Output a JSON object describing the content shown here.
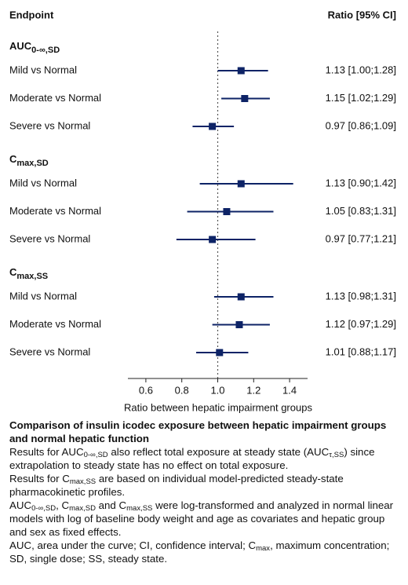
{
  "chart_data": {
    "type": "forest",
    "column_headers": [
      "Endpoint",
      "Ratio [95% CI]"
    ],
    "color": "#0d2366",
    "reference_line": 1,
    "xlim": [
      0.5,
      1.5
    ],
    "xticks": [
      0.6,
      0.8,
      {
        "value": 1,
        "label": "1.0"
      },
      1.2,
      1.4
    ],
    "xlabel": "Ratio between hepatic impairment groups",
    "groups": [
      {
        "label": "AUC",
        "label_sub": "0-∞,SD",
        "rows": [
          {
            "label": "Mild vs Normal",
            "estimate": 1.13,
            "lower": 1.0,
            "upper": 1.28,
            "value_label": "1.13 [1.00;1.28]"
          },
          {
            "label": "Moderate vs Normal",
            "estimate": 1.15,
            "lower": 1.02,
            "upper": 1.29,
            "value_label": "1.15 [1.02;1.29]"
          },
          {
            "label": "Severe vs Normal",
            "estimate": 0.97,
            "lower": 0.86,
            "upper": 1.09,
            "value_label": "0.97 [0.86;1.09]"
          }
        ]
      },
      {
        "label": "C",
        "label_sub": "max,SD",
        "rows": [
          {
            "label": "Mild vs Normal",
            "estimate": 1.13,
            "lower": 0.9,
            "upper": 1.42,
            "value_label": "1.13 [0.90;1.42]"
          },
          {
            "label": "Moderate vs Normal",
            "estimate": 1.05,
            "lower": 0.83,
            "upper": 1.31,
            "value_label": "1.05 [0.83;1.31]"
          },
          {
            "label": "Severe vs Normal",
            "estimate": 0.97,
            "lower": 0.77,
            "upper": 1.21,
            "value_label": "0.97 [0.77;1.21]"
          }
        ]
      },
      {
        "label": "C",
        "label_sub": "max,SS",
        "rows": [
          {
            "label": "Mild vs Normal",
            "estimate": 1.13,
            "lower": 0.98,
            "upper": 1.31,
            "value_label": "1.13 [0.98;1.31]"
          },
          {
            "label": "Moderate vs Normal",
            "estimate": 1.12,
            "lower": 0.97,
            "upper": 1.29,
            "value_label": "1.12 [0.97;1.29]"
          },
          {
            "label": "Severe vs Normal",
            "estimate": 1.01,
            "lower": 0.88,
            "upper": 1.17,
            "value_label": "1.01 [0.88;1.17]"
          }
        ]
      }
    ],
    "footnote": {
      "title": "Comparison of insulin icodec exposure between hepatic impairment groups and normal hepatic function",
      "paragraphs": [
        [
          "Results for AUC",
          {
            "sub": "0-∞,SD"
          },
          " also reflect total exposure at steady state (AUC",
          {
            "sub": "τ,SS"
          },
          ") since extrapolation to steady state has no effect on total exposure."
        ],
        [
          "Results for C",
          {
            "sub": "max,SS"
          },
          " are based on individual model-predicted steady-state pharmacokinetic profiles."
        ],
        [
          "AUC",
          {
            "sub": "0-∞,SD"
          },
          ", C",
          {
            "sub": "max,SD"
          },
          " and C",
          {
            "sub": "max,SS"
          },
          " were log-transformed and analyzed in normal linear models with log of baseline body weight and age as covariates and hepatic group and sex as fixed effects."
        ],
        [
          "AUC, area under the curve; CI, confidence interval; C",
          {
            "sub": "max"
          },
          ", maximum concentration; SD, single dose; SS, steady state."
        ]
      ]
    }
  }
}
